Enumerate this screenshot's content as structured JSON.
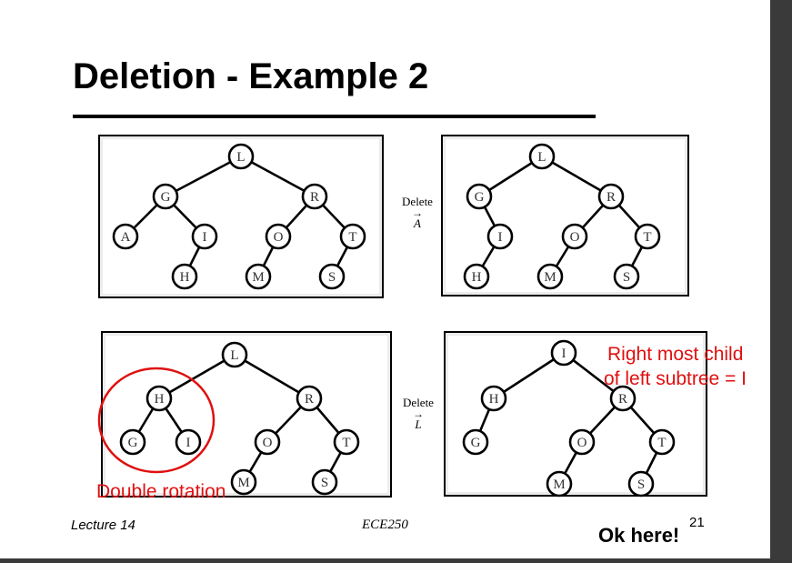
{
  "slide": {
    "title": "Deletion - Example 2",
    "footer_left": "Lecture 14",
    "footer_center": "ECE250",
    "page_number": "21"
  },
  "operations": {
    "top": {
      "word": "Delete",
      "arrow": "→",
      "key": "A"
    },
    "bottom": {
      "word": "Delete",
      "arrow": "→",
      "key": "L"
    }
  },
  "annotations": {
    "double_rotation": "Double rotation",
    "right_most_line1": "Right most child",
    "right_most_line2": "of left subtree = I",
    "ok_here": "Ok here!",
    "highlight_color": "#e01010"
  },
  "trees": {
    "top_left": [
      {
        "label": "L",
        "children": [
          "G",
          "R"
        ]
      },
      {
        "label": "G",
        "children": [
          "A",
          "I"
        ]
      },
      {
        "label": "R",
        "children": [
          "O",
          "T"
        ]
      },
      {
        "label": "A",
        "children": []
      },
      {
        "label": "I",
        "children": [
          "H"
        ]
      },
      {
        "label": "O",
        "children": [
          "M"
        ]
      },
      {
        "label": "T",
        "children": [
          "S"
        ]
      },
      {
        "label": "H",
        "children": []
      },
      {
        "label": "M",
        "children": []
      },
      {
        "label": "S",
        "children": []
      }
    ],
    "top_right": [
      {
        "label": "L",
        "children": [
          "G",
          "R"
        ]
      },
      {
        "label": "G",
        "children": [
          "I"
        ]
      },
      {
        "label": "R",
        "children": [
          "O",
          "T"
        ]
      },
      {
        "label": "I",
        "children": [
          "H"
        ]
      },
      {
        "label": "O",
        "children": [
          "M"
        ]
      },
      {
        "label": "T",
        "children": [
          "S"
        ]
      },
      {
        "label": "H",
        "children": []
      },
      {
        "label": "M",
        "children": []
      },
      {
        "label": "S",
        "children": []
      }
    ],
    "bottom_left": [
      {
        "label": "L",
        "children": [
          "H",
          "R"
        ]
      },
      {
        "label": "H",
        "children": [
          "G",
          "I"
        ]
      },
      {
        "label": "R",
        "children": [
          "O",
          "T"
        ]
      },
      {
        "label": "G",
        "children": []
      },
      {
        "label": "I",
        "children": []
      },
      {
        "label": "O",
        "children": [
          "M"
        ]
      },
      {
        "label": "T",
        "children": [
          "S"
        ]
      },
      {
        "label": "M",
        "children": []
      },
      {
        "label": "S",
        "children": []
      }
    ],
    "bottom_right": [
      {
        "label": "I",
        "children": [
          "H",
          "R"
        ]
      },
      {
        "label": "H",
        "children": [
          "G"
        ]
      },
      {
        "label": "R",
        "children": [
          "O",
          "T"
        ]
      },
      {
        "label": "G",
        "children": []
      },
      {
        "label": "O",
        "children": [
          "M"
        ]
      },
      {
        "label": "T",
        "children": [
          "S"
        ]
      },
      {
        "label": "M",
        "children": []
      },
      {
        "label": "S",
        "children": []
      }
    ]
  }
}
